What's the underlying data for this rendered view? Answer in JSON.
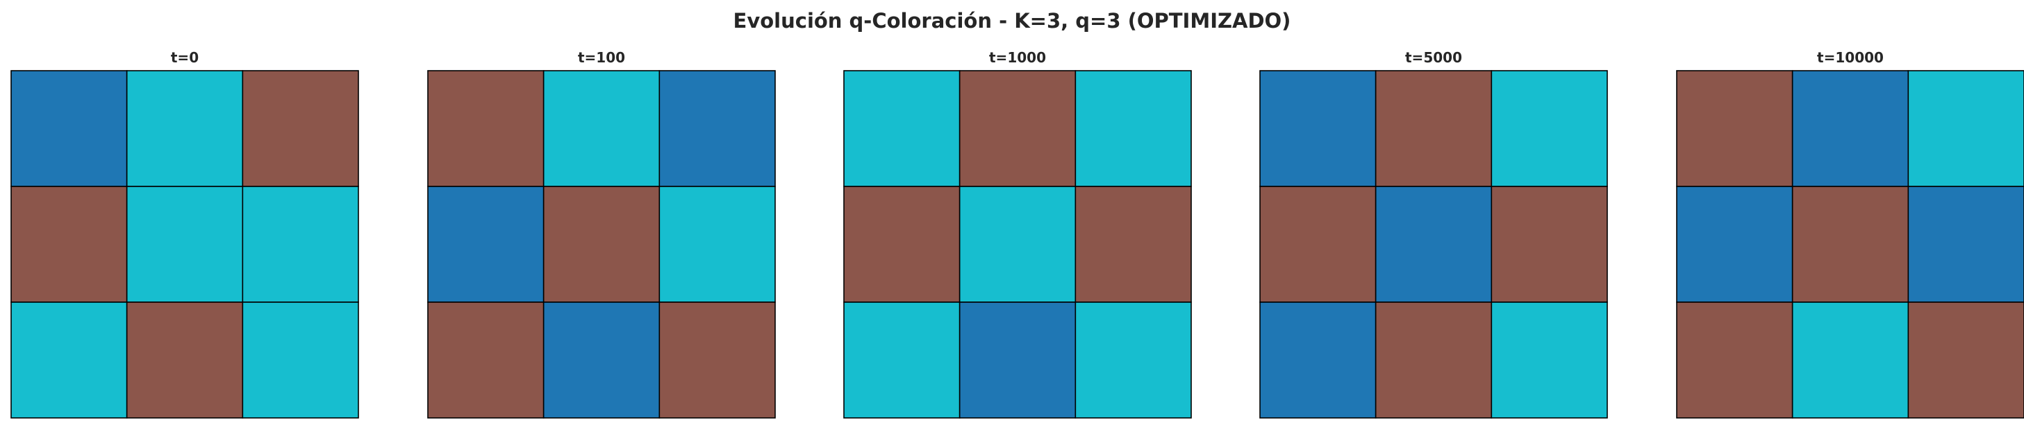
{
  "title": "Evolución q-Coloración - K=3, q=3 (OPTIMIZADO)",
  "colors": {
    "0": "#1f77b4",
    "1": "#8c564b",
    "2": "#17becf",
    "grid_line": "#000000"
  },
  "chart_data": [
    {
      "type": "heatmap",
      "title": "t=0",
      "grid": [
        [
          0,
          2,
          1
        ],
        [
          1,
          2,
          2
        ],
        [
          2,
          1,
          2
        ]
      ]
    },
    {
      "type": "heatmap",
      "title": "t=100",
      "grid": [
        [
          1,
          2,
          0
        ],
        [
          0,
          1,
          2
        ],
        [
          1,
          0,
          1
        ]
      ]
    },
    {
      "type": "heatmap",
      "title": "t=1000",
      "grid": [
        [
          2,
          1,
          2
        ],
        [
          1,
          2,
          1
        ],
        [
          2,
          0,
          2
        ]
      ]
    },
    {
      "type": "heatmap",
      "title": "t=5000",
      "grid": [
        [
          0,
          1,
          2
        ],
        [
          1,
          0,
          1
        ],
        [
          0,
          1,
          2
        ]
      ]
    },
    {
      "type": "heatmap",
      "title": "t=10000",
      "grid": [
        [
          1,
          0,
          2
        ],
        [
          0,
          1,
          0
        ],
        [
          1,
          2,
          1
        ]
      ]
    }
  ]
}
